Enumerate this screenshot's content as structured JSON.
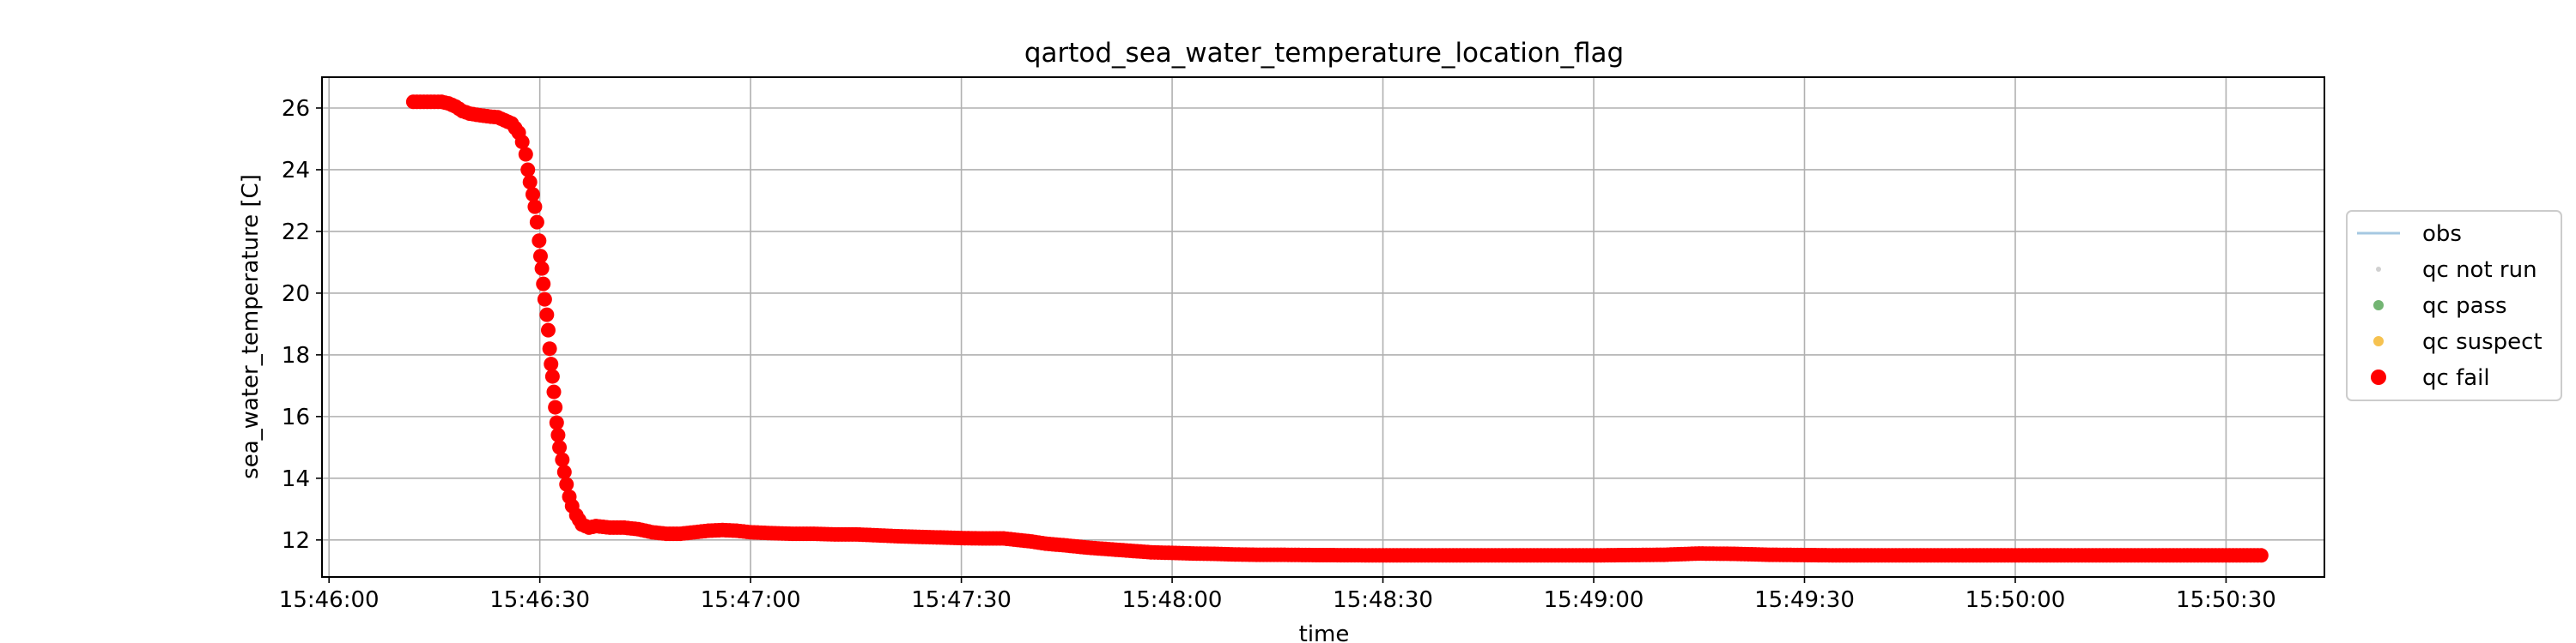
{
  "chart_data": {
    "type": "scatter",
    "title": "qartod_sea_water_temperature_location_flag",
    "xlabel": "time",
    "ylabel": "sea_water_temperature [C]",
    "x_unit": "clock time (HH:MM:SS)",
    "xlim": [
      "15:45:59",
      "15:50:44"
    ],
    "ylim": [
      10.8,
      27.0
    ],
    "x_ticks": [
      "15:46:00",
      "15:46:30",
      "15:47:00",
      "15:47:30",
      "15:48:00",
      "15:48:30",
      "15:49:00",
      "15:49:30",
      "15:50:00",
      "15:50:30"
    ],
    "y_ticks": [
      12,
      14,
      16,
      18,
      20,
      22,
      24,
      26
    ],
    "grid": true,
    "legend_position": "right, outside plot",
    "legend": [
      {
        "label": "obs",
        "kind": "line",
        "color": "#a6c8e2"
      },
      {
        "label": "qc not run",
        "kind": "marker",
        "color": "#c8c8c8"
      },
      {
        "label": "qc pass",
        "kind": "marker",
        "color": "#5aa85a"
      },
      {
        "label": "qc suspect",
        "kind": "marker",
        "color": "#f5b731"
      },
      {
        "label": "qc fail",
        "kind": "marker",
        "color": "#ff0000"
      }
    ],
    "series": [
      {
        "name": "qc fail",
        "color": "#ff0000",
        "points": [
          [
            "15:46:12",
            26.2
          ],
          [
            "15:46:13",
            26.2
          ],
          [
            "15:46:14",
            26.2
          ],
          [
            "15:46:15",
            26.2
          ],
          [
            "15:46:16",
            26.2
          ],
          [
            "15:46:17",
            26.15
          ],
          [
            "15:46:18",
            26.05
          ],
          [
            "15:46:19",
            25.9
          ],
          [
            "15:46:20",
            25.82
          ],
          [
            "15:46:21",
            25.78
          ],
          [
            "15:46:22",
            25.75
          ],
          [
            "15:46:23",
            25.72
          ],
          [
            "15:46:24",
            25.7
          ],
          [
            "15:46:25",
            25.6
          ],
          [
            "15:46:26",
            25.5
          ],
          [
            "15:46:27",
            25.2
          ],
          [
            "15:46:27.5",
            24.9
          ],
          [
            "15:46:28",
            24.5
          ],
          [
            "15:46:28.3",
            24.0
          ],
          [
            "15:46:28.6",
            23.6
          ],
          [
            "15:46:29",
            23.2
          ],
          [
            "15:46:29.3",
            22.8
          ],
          [
            "15:46:29.6",
            22.3
          ],
          [
            "15:46:29.9",
            21.7
          ],
          [
            "15:46:30.1",
            21.2
          ],
          [
            "15:46:30.3",
            20.8
          ],
          [
            "15:46:30.5",
            20.3
          ],
          [
            "15:46:30.7",
            19.8
          ],
          [
            "15:46:31",
            19.3
          ],
          [
            "15:46:31.2",
            18.8
          ],
          [
            "15:46:31.4",
            18.2
          ],
          [
            "15:46:31.6",
            17.7
          ],
          [
            "15:46:31.8",
            17.3
          ],
          [
            "15:46:32",
            16.8
          ],
          [
            "15:46:32.2",
            16.3
          ],
          [
            "15:46:32.4",
            15.8
          ],
          [
            "15:46:32.6",
            15.4
          ],
          [
            "15:46:32.8",
            15.0
          ],
          [
            "15:46:33.2",
            14.6
          ],
          [
            "15:46:33.5",
            14.2
          ],
          [
            "15:46:33.8",
            13.8
          ],
          [
            "15:46:34.2",
            13.4
          ],
          [
            "15:46:34.6",
            13.1
          ],
          [
            "15:46:35.2",
            12.8
          ],
          [
            "15:46:36",
            12.5
          ],
          [
            "15:46:37",
            12.4
          ],
          [
            "15:46:38",
            12.45
          ],
          [
            "15:46:40",
            12.4
          ],
          [
            "15:46:42",
            12.4
          ],
          [
            "15:46:44",
            12.35
          ],
          [
            "15:46:46",
            12.25
          ],
          [
            "15:46:48",
            12.2
          ],
          [
            "15:46:50",
            12.2
          ],
          [
            "15:46:52",
            12.25
          ],
          [
            "15:46:54",
            12.3
          ],
          [
            "15:46:56",
            12.32
          ],
          [
            "15:46:58",
            12.3
          ],
          [
            "15:47:00",
            12.25
          ],
          [
            "15:47:03",
            12.22
          ],
          [
            "15:47:06",
            12.2
          ],
          [
            "15:47:09",
            12.2
          ],
          [
            "15:47:12",
            12.18
          ],
          [
            "15:47:15",
            12.18
          ],
          [
            "15:47:18",
            12.15
          ],
          [
            "15:47:21",
            12.12
          ],
          [
            "15:47:24",
            12.1
          ],
          [
            "15:47:27",
            12.08
          ],
          [
            "15:47:30",
            12.06
          ],
          [
            "15:47:33",
            12.05
          ],
          [
            "15:47:36",
            12.05
          ],
          [
            "15:47:38",
            12.0
          ],
          [
            "15:47:40",
            11.95
          ],
          [
            "15:47:42",
            11.88
          ],
          [
            "15:47:45",
            11.82
          ],
          [
            "15:47:48",
            11.75
          ],
          [
            "15:47:51",
            11.7
          ],
          [
            "15:47:54",
            11.65
          ],
          [
            "15:47:57",
            11.6
          ],
          [
            "15:48:00",
            11.58
          ],
          [
            "15:48:03",
            11.56
          ],
          [
            "15:48:06",
            11.55
          ],
          [
            "15:48:09",
            11.53
          ],
          [
            "15:48:12",
            11.52
          ],
          [
            "15:48:15",
            11.52
          ],
          [
            "15:48:20",
            11.51
          ],
          [
            "15:48:30",
            11.5
          ],
          [
            "15:48:45",
            11.5
          ],
          [
            "15:49:00",
            11.5
          ],
          [
            "15:49:10",
            11.52
          ],
          [
            "15:49:15",
            11.56
          ],
          [
            "15:49:20",
            11.55
          ],
          [
            "15:49:25",
            11.52
          ],
          [
            "15:49:35",
            11.5
          ],
          [
            "15:49:50",
            11.5
          ],
          [
            "15:50:05",
            11.5
          ],
          [
            "15:50:20",
            11.5
          ],
          [
            "15:50:35",
            11.5
          ]
        ]
      }
    ]
  }
}
